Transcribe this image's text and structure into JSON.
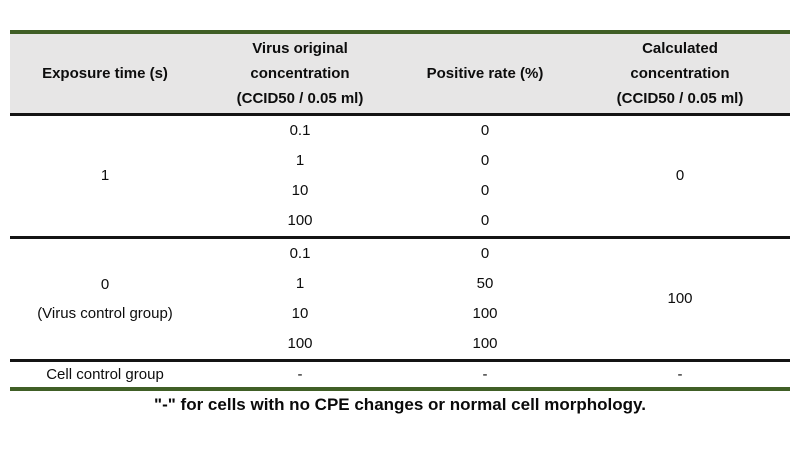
{
  "table": {
    "header": {
      "col1": "Exposure time (s)",
      "col2": [
        "Virus original",
        "concentration",
        "(CCID50 / 0.05 ml)"
      ],
      "col3": "Positive rate (%)",
      "col4": [
        "Calculated",
        "concentration",
        "(CCID50 / 0.05 ml)"
      ]
    },
    "groups": [
      {
        "label": [
          "1"
        ],
        "rows": [
          {
            "conc": "0.1",
            "rate": "0"
          },
          {
            "conc": "1",
            "rate": "0"
          },
          {
            "conc": "10",
            "rate": "0"
          },
          {
            "conc": "100",
            "rate": "0"
          }
        ],
        "calculated": "0"
      },
      {
        "label": [
          "0",
          "(Virus control group)"
        ],
        "rows": [
          {
            "conc": "0.1",
            "rate": "0"
          },
          {
            "conc": "1",
            "rate": "50"
          },
          {
            "conc": "10",
            "rate": "100"
          },
          {
            "conc": "100",
            "rate": "100"
          }
        ],
        "calculated": "100"
      }
    ],
    "cell_control": {
      "label": "Cell control group",
      "conc": "-",
      "rate": "-",
      "calculated": "-"
    },
    "footnote": "\"-\" for cells with no CPE changes or normal cell morphology."
  },
  "colors": {
    "accent_green": "#405f26",
    "header_bg": "#e7e6e6",
    "rule_black": "#141414"
  }
}
